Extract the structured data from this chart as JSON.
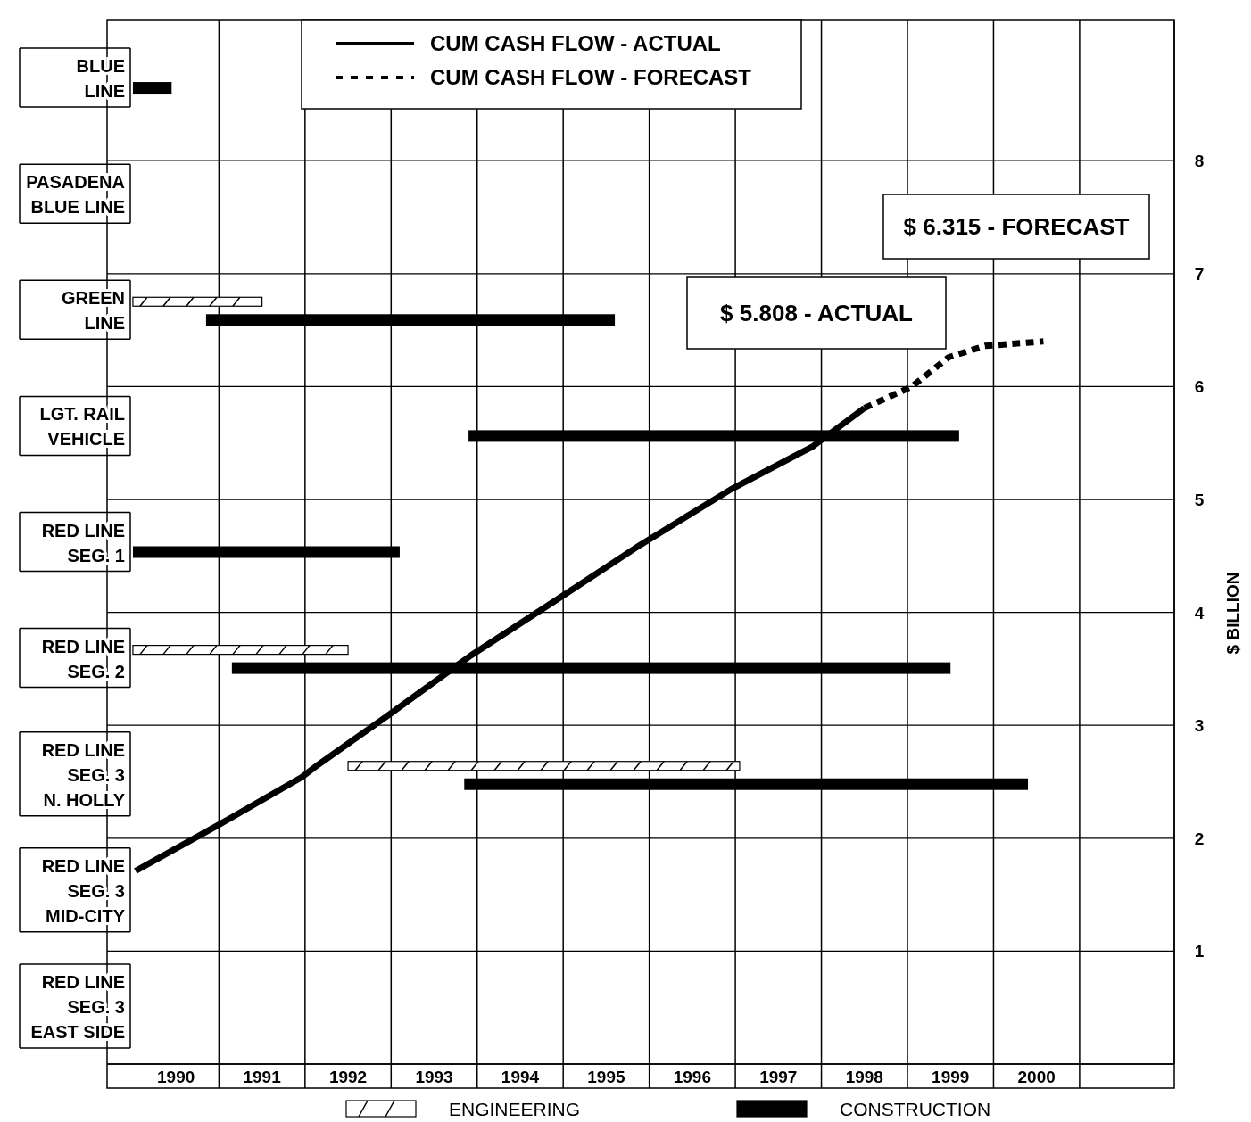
{
  "chart_data": [
    {
      "type": "bar",
      "orientation": "horizontal",
      "categories": [
        "BLUE\nLINE",
        "PASADENA\nBLUE LINE",
        "GREEN\nLINE",
        "LGT. RAIL\nVEHICLE",
        "RED LINE\nSEG. 1",
        "RED LINE\nSEG. 2",
        "RED LINE\nSEG. 3\nN. HOLLY",
        "RED LINE\nSEG. 3\nMID-CITY",
        "RED LINE\nSEG. 3\nEAST SIDE"
      ],
      "series": [
        {
          "name": "ENGINEERING",
          "color": "#ffffff",
          "base": [
            null,
            null,
            1990,
            null,
            null,
            1990,
            1992.5,
            null,
            null
          ],
          "values": [
            null,
            null,
            1.5,
            null,
            null,
            2.5,
            4.55,
            null,
            null
          ]
        },
        {
          "name": "CONSTRUCTION",
          "color": "#000000",
          "base": [
            1990,
            null,
            1990.85,
            1993.9,
            1990,
            1991.15,
            1993.85,
            null,
            null
          ],
          "values": [
            0.45,
            null,
            4.75,
            5.7,
            3.1,
            8.35,
            6.55,
            null,
            null
          ]
        }
      ],
      "xlim": [
        1989.7,
        2002.1
      ],
      "xticks": [
        {
          "value": 1990.5,
          "label": "1990"
        },
        {
          "value": 1991,
          "label": null
        },
        {
          "value": 1991.5,
          "label": "1991"
        },
        {
          "value": 1992,
          "label": null
        },
        {
          "value": 1992.5,
          "label": "1992"
        },
        {
          "value": 1993,
          "label": null
        },
        {
          "value": 1993.5,
          "label": "1993"
        },
        {
          "value": 1994,
          "label": null
        },
        {
          "value": 1994.5,
          "label": "1994"
        },
        {
          "value": 1995,
          "label": null
        },
        {
          "value": 1995.5,
          "label": "1995"
        },
        {
          "value": 1996,
          "label": null
        },
        {
          "value": 1996.5,
          "label": "1996"
        },
        {
          "value": 1997,
          "label": null
        },
        {
          "value": 1997.5,
          "label": "1997"
        },
        {
          "value": 1998,
          "label": null
        },
        {
          "value": 1998.5,
          "label": "1998"
        },
        {
          "value": 1999,
          "label": null
        },
        {
          "value": 1999.5,
          "label": "1999"
        },
        {
          "value": 2000,
          "label": null
        },
        {
          "value": 2000.5,
          "label": "2000"
        },
        {
          "value": 2001,
          "label": null
        }
      ],
      "grid": "x",
      "legend": "bottom"
    },
    {
      "type": "line",
      "series": [
        {
          "name": "CUM CASH FLOW - ACTUAL",
          "line_style": "solid",
          "color": "#000000",
          "x": [
            1990.03,
            1991,
            1991.96,
            1992.15,
            1992.95,
            1993.93,
            1994.9,
            1995.9,
            1996.95,
            1997.9,
            1998.5
          ],
          "values": [
            1.71,
            2.12,
            2.54,
            2.65,
            3.08,
            3.62,
            4.1,
            4.6,
            5.09,
            5.47,
            5.81
          ]
        },
        {
          "name": "CUM CASH FLOW - FORECAST",
          "line_style": "dashed",
          "color": "#000000",
          "x": [
            1998.5,
            1999.05,
            1999.48,
            1999.9,
            2000.58
          ],
          "values": [
            5.81,
            6.0,
            6.26,
            6.36,
            6.4
          ]
        }
      ],
      "xlim": [
        1989.7,
        2002.1
      ],
      "ylim": [
        0,
        9.25
      ],
      "yticks": [
        1,
        2,
        3,
        4,
        5,
        6,
        7,
        8
      ],
      "ylabel": "$ BILLION",
      "tick_labels": "y",
      "annotations": [
        "$ 5.808 - ACTUAL",
        "$ 6.315 - FORECAST"
      ],
      "grid": "y",
      "legend": "top"
    }
  ]
}
